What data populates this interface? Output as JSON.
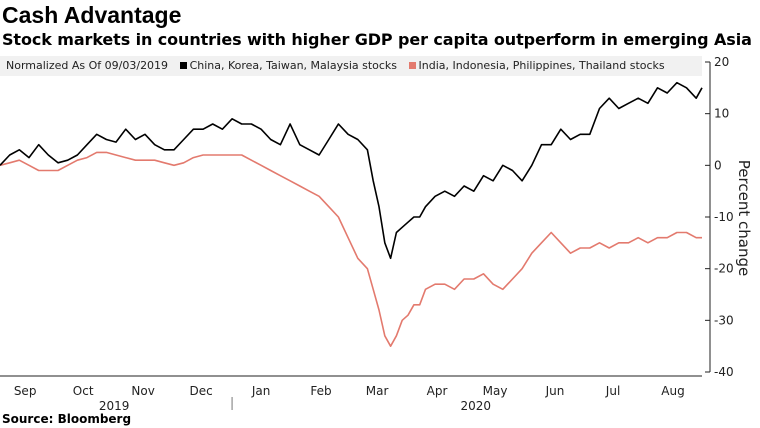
{
  "chart_data": {
    "type": "line",
    "title": "Cash Advantage",
    "subtitle": "Stock markets in countries with higher GDP per capita outperform in emerging Asia",
    "note": "Normalized As Of 09/03/2019",
    "ylabel": "Percent change",
    "ylim": [
      -40,
      20
    ],
    "yticks": [
      20,
      10,
      0,
      -10,
      -20,
      -30,
      -40
    ],
    "ytick_labels": [
      "20",
      "10",
      "0",
      "-10",
      "-20",
      "-30",
      "-40"
    ],
    "xlim": [
      0,
      363
    ],
    "x_unit": "days since 2019-09-03",
    "x_ticks": [
      {
        "label": "Sep",
        "x": 13
      },
      {
        "label": "Oct",
        "x": 43
      },
      {
        "label": "Nov",
        "x": 74
      },
      {
        "label": "Dec",
        "x": 104
      },
      {
        "label": "Jan",
        "x": 135
      },
      {
        "label": "Feb",
        "x": 166
      },
      {
        "label": "Mar",
        "x": 195
      },
      {
        "label": "Apr",
        "x": 226
      },
      {
        "label": "May",
        "x": 256
      },
      {
        "label": "Jun",
        "x": 287
      },
      {
        "label": "Jul",
        "x": 317
      },
      {
        "label": "Aug",
        "x": 348
      }
    ],
    "year_labels": [
      {
        "label": "2019",
        "x": 59
      },
      {
        "label": "2020",
        "x": 246
      }
    ],
    "year_boundary_x": 120,
    "grid": false,
    "series": [
      {
        "name": "China, Korea, Taiwan, Malaysia stocks",
        "color": "#000000",
        "x": [
          0,
          5,
          10,
          15,
          20,
          25,
          30,
          35,
          40,
          45,
          50,
          55,
          60,
          65,
          70,
          75,
          80,
          85,
          90,
          95,
          100,
          105,
          110,
          115,
          120,
          125,
          130,
          135,
          140,
          145,
          150,
          155,
          160,
          165,
          170,
          175,
          180,
          185,
          190,
          193,
          196,
          199,
          202,
          205,
          208,
          211,
          214,
          217,
          220,
          225,
          230,
          235,
          240,
          245,
          250,
          255,
          260,
          265,
          270,
          275,
          280,
          285,
          290,
          295,
          300,
          305,
          310,
          315,
          320,
          325,
          330,
          335,
          340,
          345,
          350,
          355,
          360,
          363
        ],
        "values": [
          0,
          2,
          3,
          1.5,
          4,
          2,
          0.5,
          1,
          2,
          4,
          6,
          5,
          4.5,
          7,
          5,
          6,
          4,
          3,
          3,
          5,
          7,
          7,
          8,
          7,
          9,
          8,
          8,
          7,
          5,
          4,
          8,
          4,
          3,
          2,
          5,
          8,
          6,
          5,
          3,
          -3,
          -8,
          -15,
          -18,
          -13,
          -12,
          -11,
          -10,
          -10,
          -8,
          -6,
          -5,
          -6,
          -4,
          -5,
          -2,
          -3,
          0,
          -1,
          -3,
          0,
          4,
          4,
          7,
          5,
          6,
          6,
          11,
          13,
          11,
          12,
          13,
          12,
          15,
          14,
          16,
          15,
          13,
          15
        ]
      },
      {
        "name": "India, Indonesia, Philippines, Thailand stocks",
        "color": "#e37a6e",
        "x": [
          0,
          5,
          10,
          15,
          20,
          25,
          30,
          35,
          40,
          45,
          50,
          55,
          60,
          65,
          70,
          75,
          80,
          85,
          90,
          95,
          100,
          105,
          110,
          115,
          120,
          125,
          130,
          135,
          140,
          145,
          150,
          155,
          160,
          165,
          170,
          175,
          180,
          185,
          190,
          193,
          196,
          199,
          202,
          205,
          208,
          211,
          214,
          217,
          220,
          225,
          230,
          235,
          240,
          245,
          250,
          255,
          260,
          265,
          270,
          275,
          280,
          285,
          290,
          295,
          300,
          305,
          310,
          315,
          320,
          325,
          330,
          335,
          340,
          345,
          350,
          355,
          360,
          363
        ],
        "values": [
          0,
          0.5,
          1,
          0,
          -1,
          -1,
          -1,
          0,
          1,
          1.5,
          2.5,
          2.5,
          2,
          1.5,
          1,
          1,
          1,
          0.5,
          0,
          0.5,
          1.5,
          2,
          2,
          2,
          2,
          2,
          1,
          0,
          -1,
          -2,
          -3,
          -4,
          -5,
          -6,
          -8,
          -10,
          -14,
          -18,
          -20,
          -24,
          -28,
          -33,
          -35,
          -33,
          -30,
          -29,
          -27,
          -27,
          -24,
          -23,
          -23,
          -24,
          -22,
          -22,
          -21,
          -23,
          -24,
          -22,
          -20,
          -17,
          -15,
          -13,
          -15,
          -17,
          -16,
          -16,
          -15,
          -16,
          -15,
          -15,
          -14,
          -15,
          -14,
          -14,
          -13,
          -13,
          -14,
          -14
        ]
      }
    ]
  },
  "source": "Source: Bloomberg"
}
